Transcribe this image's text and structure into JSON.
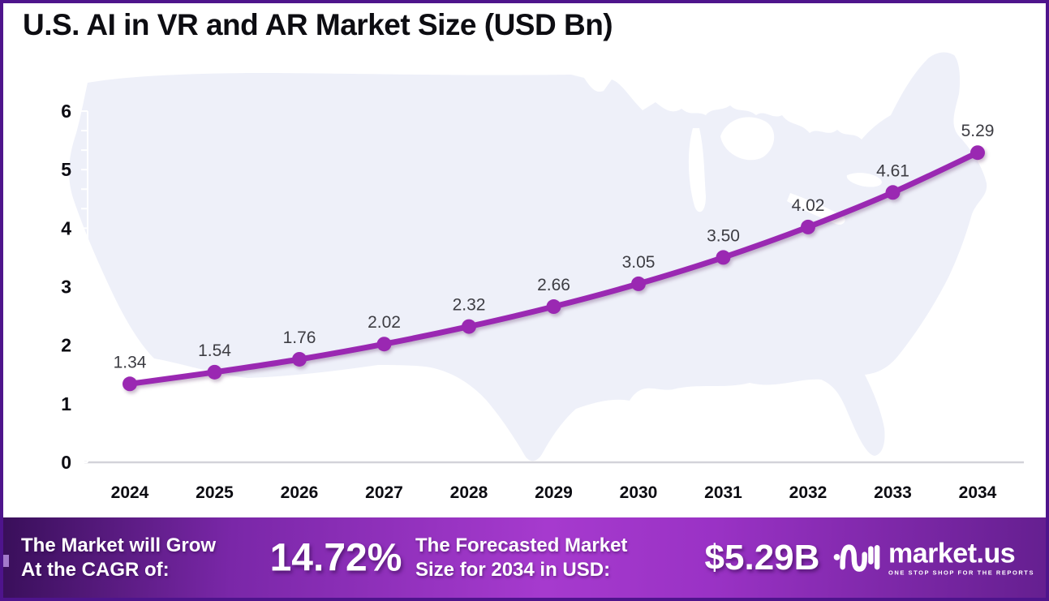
{
  "title": "U.S. AI in VR and AR Market Size (USD Bn)",
  "chart_data": {
    "type": "line",
    "title": "U.S. AI in VR and AR Market Size (USD Bn)",
    "x": [
      2024,
      2025,
      2026,
      2027,
      2028,
      2029,
      2030,
      2031,
      2032,
      2033,
      2034
    ],
    "series": [
      {
        "name": "U.S. AI in VR and AR Market Size (USD Bn)",
        "values": [
          1.34,
          1.54,
          1.76,
          2.02,
          2.32,
          2.66,
          3.05,
          3.5,
          4.02,
          4.61,
          5.29
        ]
      }
    ],
    "data_labels": [
      "1.34",
      "1.54",
      "1.76",
      "2.02",
      "2.32",
      "2.66",
      "3.05",
      "3.50",
      "4.02",
      "4.61",
      "5.29"
    ],
    "ylim": [
      0,
      6
    ],
    "yticks": [
      0,
      1,
      2,
      3,
      4,
      5,
      6
    ],
    "grid": "off",
    "legend": "none",
    "line_color": "#9a28b2",
    "marker_color": "#9a28b2",
    "data_label_color": "#3d3d43",
    "background_map_color": "#eef0f9"
  },
  "footer": {
    "cagr_label_line1": "The Market will Grow",
    "cagr_label_line2": "At the CAGR of:",
    "cagr_value": "14.72%",
    "forecast_label_line1": "The Forecasted Market",
    "forecast_label_line2": "Size for 2034 in USD:",
    "forecast_value": "$5.29B",
    "logo_text": "market.us",
    "logo_tagline": "ONE STOP SHOP FOR THE REPORTS"
  },
  "colors": {
    "frame_border": "#4e148c",
    "footer_gradient_left": "#390f5a",
    "footer_gradient_mid": "#a63ace",
    "footer_gradient_right": "#651f90",
    "axis_line": "#d3d3d9",
    "y_axis_line": "#ffffff",
    "text": "#0d0d12"
  }
}
